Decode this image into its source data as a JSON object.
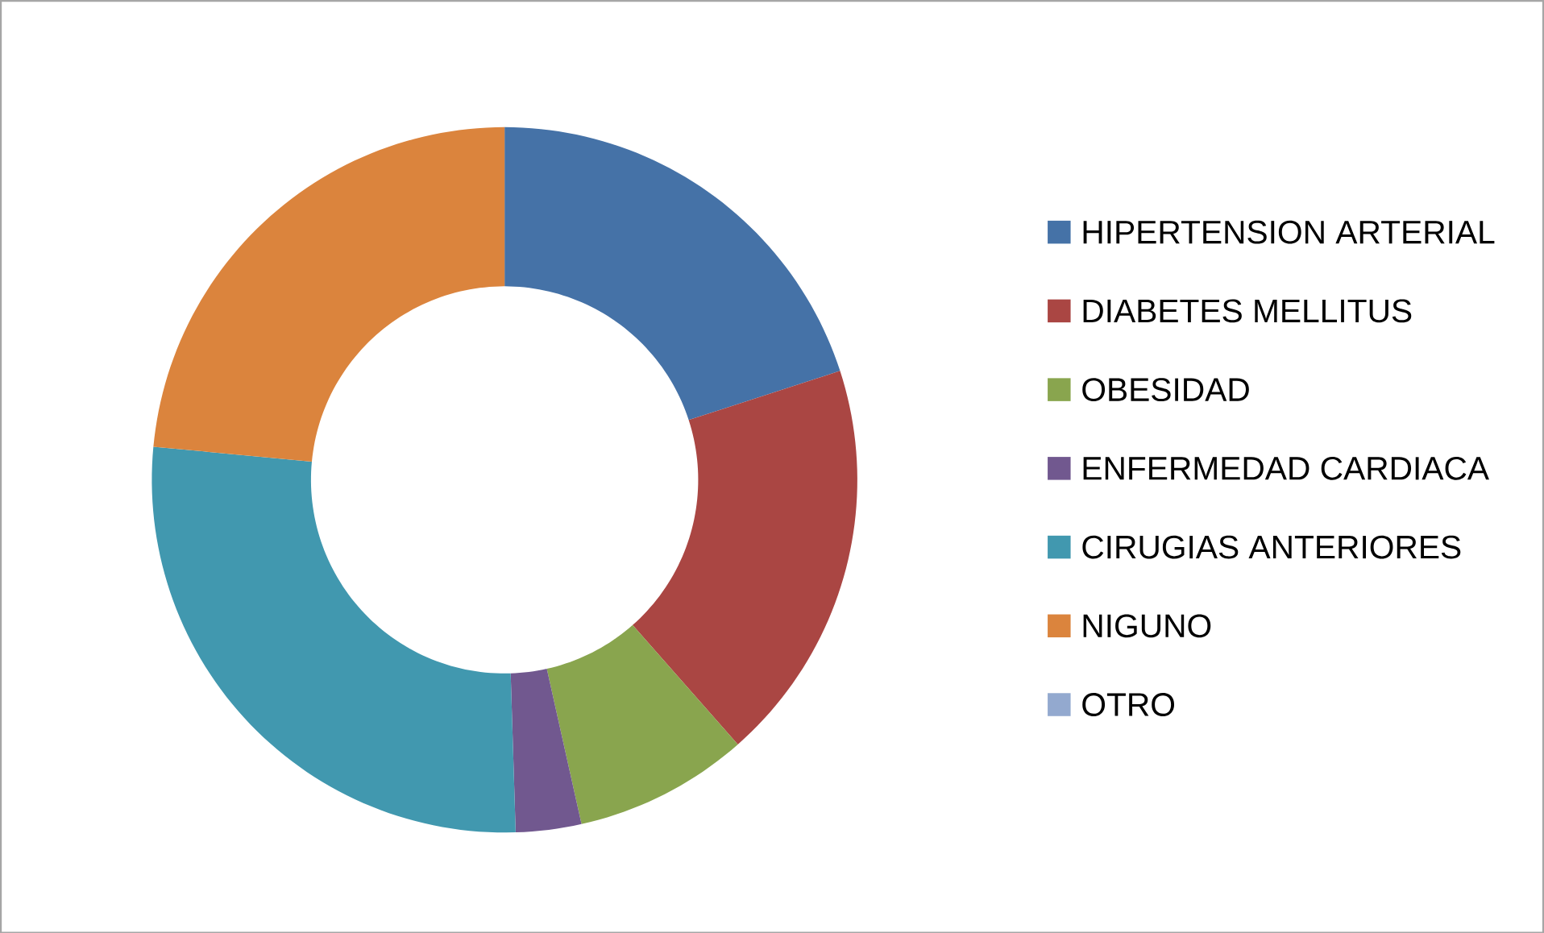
{
  "chart_data": {
    "type": "donut",
    "categories": [
      "HIPERTENSION ARTERIAL",
      "DIABETES MELLITUS",
      "OBESIDAD",
      "ENFERMEDAD CARDIACA",
      "CIRUGIAS ANTERIORES",
      "NIGUNO",
      "OTRO"
    ],
    "values": [
      20,
      18.5,
      8,
      3,
      27,
      23.5,
      0
    ],
    "colors": [
      "#4572a7",
      "#aa4643",
      "#89a54e",
      "#71588f",
      "#4198af",
      "#db843d",
      "#93a9cf"
    ],
    "legend": "right"
  }
}
